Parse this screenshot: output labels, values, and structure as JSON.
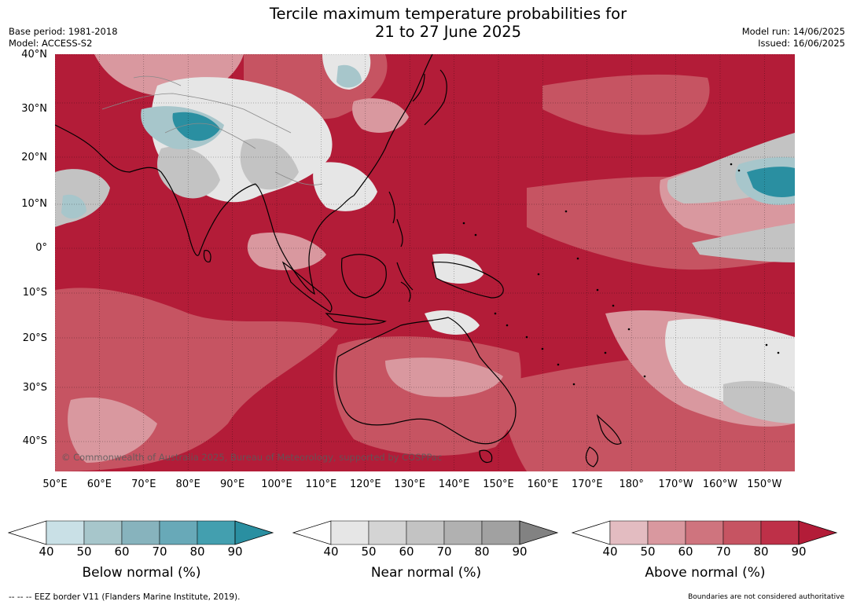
{
  "title_line1": "Tercile maximum temperature probabilities for",
  "title_line2": "21 to 27 June 2025",
  "base_period": "Base period: 1981-2018",
  "model": "Model: ACCESS-S2",
  "model_run": "Model run: 14/06/2025",
  "issued": "Issued: 16/06/2025",
  "credit": "© Commonwealth of Australia 2025, Bureau of Meteorology, supported by COSPPac",
  "lat_labels": [
    "40°N",
    "30°N",
    "20°N",
    "10°N",
    "0°",
    "10°S",
    "20°S",
    "30°S",
    "40°S"
  ],
  "lon_labels": [
    "50°E",
    "60°E",
    "70°E",
    "80°E",
    "90°E",
    "100°E",
    "110°E",
    "120°E",
    "130°E",
    "140°E",
    "150°E",
    "160°E",
    "170°E",
    "180°",
    "170°W",
    "160°W",
    "150°W"
  ],
  "legends": [
    {
      "label": "Below normal (%)",
      "ticks": [
        "40",
        "50",
        "60",
        "70",
        "80",
        "90"
      ],
      "colors": [
        "#c9e0e6",
        "#a7c6cb",
        "#87b3bd",
        "#68a9b8",
        "#439faf",
        "#2a8fa1"
      ]
    },
    {
      "label": "Near normal (%)",
      "ticks": [
        "40",
        "50",
        "60",
        "70",
        "80",
        "90"
      ],
      "colors": [
        "#e6e6e6",
        "#d4d4d4",
        "#c3c3c3",
        "#b1b1b1",
        "#a1a1a1",
        "#828282"
      ]
    },
    {
      "label": "Above normal (%)",
      "ticks": [
        "40",
        "50",
        "60",
        "70",
        "80",
        "90"
      ],
      "colors": [
        "#e3bcc1",
        "#d9989f",
        "#cf747e",
        "#c65462",
        "#be3048",
        "#b31c38"
      ]
    }
  ],
  "map_colors": {
    "above_dark": "#b31c38",
    "above_mid": "#c65462",
    "above_light": "#d9989f",
    "near_light": "#e6e6e6",
    "near_mid": "#c3c3c3",
    "near_dark": "#a1a1a1",
    "below_light": "#a7c6cb",
    "below_dark": "#2a8fa1",
    "coast": "#000000"
  },
  "footer_left": "--  --  -- EEZ border V11 (Flanders Marine Institute, 2019).",
  "footer_right": "Boundaries are not considered authoritative"
}
